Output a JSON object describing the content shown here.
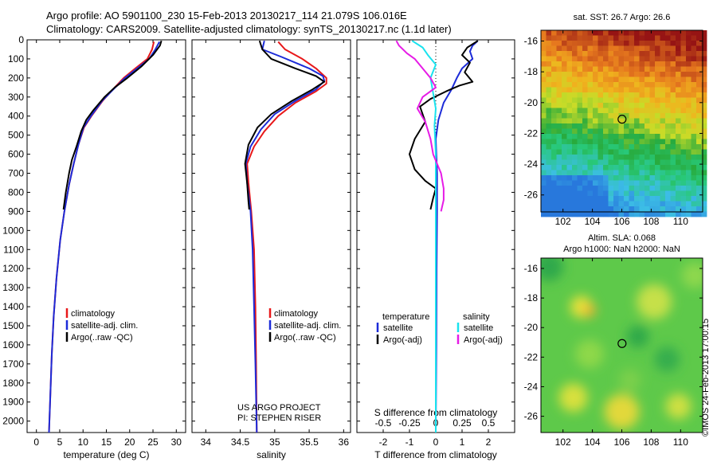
{
  "header": {
    "line1": "Argo profile: AO 5901100_230 15-Feb-2013 20130217_114 21.079S 106.016E",
    "line2": "Climatology: CARS2009. Satellite-adjusted climatology: synTS_20130217.nc (1.1d later)"
  },
  "colors": {
    "red": "#e8181a",
    "blue": "#1c2bd8",
    "black": "#000000",
    "cyan": "#19e3ee",
    "magenta": "#e61be6"
  },
  "chart_data": [
    {
      "type": "line",
      "xlabel": "temperature (deg C)",
      "xticks": [
        "0",
        "5",
        "10",
        "15",
        "20",
        "25",
        "30"
      ],
      "yticks": [
        "0",
        "100",
        "200",
        "300",
        "400",
        "500",
        "600",
        "700",
        "800",
        "900",
        "1000",
        "1100",
        "1200",
        "1300",
        "1400",
        "1500",
        "1600",
        "1700",
        "1800",
        "1900",
        "2000"
      ],
      "xlim": [
        -2,
        32
      ],
      "ylim": [
        2060,
        0
      ],
      "legend": [
        "climatology",
        "satellite-adj. clim.",
        "Argo(..raw -QC)"
      ],
      "series": [
        {
          "name": "climatology",
          "color": "red",
          "points": [
            [
              25.2,
              10
            ],
            [
              24.8,
              50
            ],
            [
              23.8,
              100
            ],
            [
              21.2,
              150
            ],
            [
              18.7,
              200
            ],
            [
              16.4,
              260
            ],
            [
              14.2,
              320
            ],
            [
              11.8,
              400
            ],
            [
              10.2,
              460
            ],
            [
              9.0,
              550
            ],
            [
              8.0,
              650
            ],
            [
              7.0,
              760
            ],
            [
              6.0,
              900
            ],
            [
              5.1,
              1050
            ],
            [
              4.3,
              1250
            ],
            [
              3.7,
              1450
            ],
            [
              3.3,
              1650
            ],
            [
              3.0,
              1850
            ],
            [
              2.7,
              2060
            ]
          ]
        },
        {
          "name": "satellite-adj. clim.",
          "color": "blue",
          "points": [
            [
              26.4,
              10
            ],
            [
              25.5,
              50
            ],
            [
              24.2,
              100
            ],
            [
              21.6,
              150
            ],
            [
              19.0,
              200
            ],
            [
              16.5,
              260
            ],
            [
              14.1,
              320
            ],
            [
              11.7,
              400
            ],
            [
              10.1,
              460
            ],
            [
              9.0,
              550
            ],
            [
              8.0,
              650
            ],
            [
              7.0,
              760
            ],
            [
              6.0,
              900
            ],
            [
              5.1,
              1050
            ],
            [
              4.3,
              1250
            ],
            [
              3.7,
              1450
            ],
            [
              3.3,
              1650
            ],
            [
              3.0,
              1850
            ],
            [
              2.7,
              2060
            ]
          ]
        },
        {
          "name": "Argo(..raw -QC)",
          "color": "black",
          "points": [
            [
              26.8,
              5
            ],
            [
              26.5,
              30
            ],
            [
              25.0,
              80
            ],
            [
              22.5,
              140
            ],
            [
              19.5,
              200
            ],
            [
              16.8,
              250
            ],
            [
              14.6,
              300
            ],
            [
              12.2,
              370
            ],
            [
              10.7,
              420
            ],
            [
              9.6,
              480
            ],
            [
              8.6,
              560
            ],
            [
              7.6,
              630
            ],
            [
              7.0,
              700
            ],
            [
              6.3,
              800
            ],
            [
              5.8,
              890
            ]
          ]
        }
      ]
    },
    {
      "type": "line",
      "xlabel": "salinity",
      "xticks": [
        "34",
        "34.5",
        "35",
        "35.5",
        "36"
      ],
      "xlim": [
        33.8,
        36.1
      ],
      "ylim": [
        2060,
        0
      ],
      "legend": [
        "climatology",
        "satellite-adj. clim.",
        "Argo(..raw -QC)"
      ],
      "annotation": [
        "US ARGO PROJECT",
        "PI: STEPHEN RISER"
      ],
      "series": [
        {
          "name": "climatology",
          "color": "red",
          "points": [
            [
              35.05,
              10
            ],
            [
              35.15,
              50
            ],
            [
              35.4,
              100
            ],
            [
              35.6,
              150
            ],
            [
              35.75,
              200
            ],
            [
              35.75,
              230
            ],
            [
              35.6,
              270
            ],
            [
              35.3,
              330
            ],
            [
              35.05,
              400
            ],
            [
              34.85,
              480
            ],
            [
              34.7,
              560
            ],
            [
              34.6,
              650
            ],
            [
              34.62,
              750
            ],
            [
              34.66,
              900
            ],
            [
              34.7,
              1100
            ],
            [
              34.72,
              1400
            ],
            [
              34.73,
              1700
            ],
            [
              34.74,
              2060
            ]
          ]
        },
        {
          "name": "satellite-adj. clim.",
          "color": "blue",
          "points": [
            [
              34.85,
              5
            ],
            [
              34.82,
              50
            ],
            [
              35.1,
              90
            ],
            [
              35.5,
              150
            ],
            [
              35.7,
              190
            ],
            [
              35.72,
              215
            ],
            [
              35.6,
              260
            ],
            [
              35.3,
              320
            ],
            [
              35.0,
              390
            ],
            [
              34.8,
              470
            ],
            [
              34.65,
              560
            ],
            [
              34.58,
              650
            ],
            [
              34.6,
              750
            ],
            [
              34.65,
              900
            ],
            [
              34.68,
              1100
            ],
            [
              34.7,
              1400
            ],
            [
              34.72,
              1700
            ],
            [
              34.74,
              2060
            ]
          ]
        },
        {
          "name": "Argo(..raw -QC)",
          "color": "black",
          "points": [
            [
              34.78,
              5
            ],
            [
              34.82,
              50
            ],
            [
              34.95,
              100
            ],
            [
              35.3,
              150
            ],
            [
              35.6,
              190
            ],
            [
              35.72,
              220
            ],
            [
              35.55,
              260
            ],
            [
              35.25,
              320
            ],
            [
              34.95,
              390
            ],
            [
              34.75,
              460
            ],
            [
              34.62,
              550
            ],
            [
              34.57,
              650
            ],
            [
              34.6,
              750
            ],
            [
              34.62,
              850
            ],
            [
              34.63,
              890
            ]
          ]
        }
      ]
    },
    {
      "type": "line",
      "xlabel": "T difference from climatology",
      "xticks": [
        "-2",
        "-1",
        "0",
        "1",
        "2"
      ],
      "topticks": [
        "-0.5",
        "-0.25",
        "0",
        "0.25",
        "0.5"
      ],
      "toplabel": "S difference from climatology",
      "xlim": [
        -3,
        3
      ],
      "ylim": [
        2060,
        0
      ],
      "legend": {
        "temperature_title": "temperature",
        "salinity_title": "salinity",
        "t_items": [
          "satellite",
          "Argo(-adj)"
        ],
        "s_items": [
          "satellite",
          "Argo(-adj)"
        ]
      },
      "series": [
        {
          "name": "T satellite",
          "color": "blue",
          "points": [
            [
              1.6,
              5
            ],
            [
              1.4,
              30
            ],
            [
              1.3,
              60
            ],
            [
              1.4,
              100
            ],
            [
              1.0,
              150
            ],
            [
              0.8,
              200
            ],
            [
              0.6,
              260
            ],
            [
              0.3,
              330
            ],
            [
              0.1,
              420
            ],
            [
              0.0,
              520
            ],
            [
              0.05,
              700
            ],
            [
              0.05,
              900
            ],
            [
              0.03,
              1200
            ],
            [
              0.02,
              1600
            ],
            [
              0.0,
              2060
            ]
          ]
        },
        {
          "name": "T Argo(-adj)",
          "color": "black",
          "points": [
            [
              1.6,
              5
            ],
            [
              1.2,
              40
            ],
            [
              1.0,
              80
            ],
            [
              1.3,
              120
            ],
            [
              1.1,
              170
            ],
            [
              1.4,
              220
            ],
            [
              0.9,
              240
            ],
            [
              0.4,
              270
            ],
            [
              -0.2,
              310
            ],
            [
              -0.6,
              350
            ],
            [
              -0.4,
              430
            ],
            [
              -0.8,
              520
            ],
            [
              -1.0,
              600
            ],
            [
              -0.8,
              680
            ],
            [
              -0.4,
              740
            ],
            [
              0.0,
              780
            ],
            [
              -0.1,
              830
            ],
            [
              -0.2,
              890
            ]
          ]
        },
        {
          "name": "S satellite",
          "color": "cyan",
          "points": [
            [
              -0.9,
              5
            ],
            [
              -0.5,
              40
            ],
            [
              -0.3,
              80
            ],
            [
              0.0,
              130
            ],
            [
              -0.2,
              200
            ],
            [
              -0.1,
              280
            ],
            [
              0.0,
              360
            ],
            [
              -0.05,
              450
            ],
            [
              0.0,
              600
            ],
            [
              0.0,
              900
            ],
            [
              0.0,
              1300
            ],
            [
              0.0,
              1700
            ],
            [
              0.0,
              2060
            ]
          ]
        },
        {
          "name": "S Argo(-adj)",
          "color": "magenta",
          "points": [
            [
              -1.5,
              5
            ],
            [
              -1.4,
              30
            ],
            [
              -1.1,
              70
            ],
            [
              -0.8,
              100
            ],
            [
              -0.5,
              150
            ],
            [
              -0.2,
              200
            ],
            [
              0.0,
              250
            ],
            [
              -0.5,
              300
            ],
            [
              -0.7,
              360
            ],
            [
              -0.4,
              430
            ],
            [
              -0.2,
              520
            ],
            [
              -0.1,
              600
            ],
            [
              0.2,
              700
            ],
            [
              0.3,
              780
            ],
            [
              0.3,
              840
            ],
            [
              0.2,
              900
            ]
          ]
        }
      ]
    },
    {
      "type": "heatmap",
      "title": "sat. SST: 26.7  Argo: 26.6",
      "xticks": [
        "102",
        "104",
        "106",
        "108",
        "110"
      ],
      "yticks": [
        "-16",
        "-18",
        "-20",
        "-22",
        "-24",
        "-26"
      ],
      "xlim": [
        100.5,
        111.5
      ],
      "ylim": [
        -27.1,
        -15.3
      ],
      "marker": [
        106.016,
        -21.079
      ]
    },
    {
      "type": "heatmap",
      "title": "Altim. SLA: 0.068",
      "subtitle": "Argo h1000: NaN h2000: NaN",
      "xticks": [
        "102",
        "104",
        "106",
        "108",
        "110"
      ],
      "yticks": [
        "-16",
        "-18",
        "-20",
        "-22",
        "-24",
        "-26"
      ],
      "xlim": [
        100.5,
        111.5
      ],
      "ylim": [
        -27.1,
        -15.3
      ],
      "marker": [
        106.016,
        -21.079
      ]
    }
  ],
  "stamp": "©IMOS 24-Feb-2013 17:00:15"
}
